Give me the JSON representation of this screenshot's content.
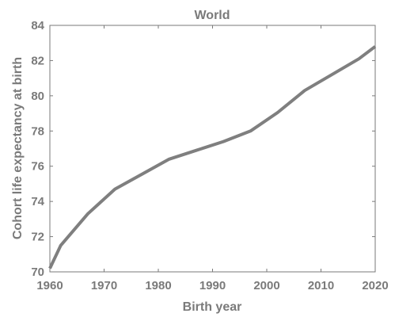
{
  "chart_data": {
    "type": "line",
    "title": "World",
    "xlabel": "Birth year",
    "ylabel": "Cohort life expectancy at birth",
    "xlim": [
      1960,
      2020
    ],
    "ylim": [
      70,
      84
    ],
    "xticks": [
      1960,
      1970,
      1980,
      1990,
      2000,
      2010,
      2020
    ],
    "yticks": [
      70,
      72,
      74,
      76,
      78,
      80,
      82,
      84
    ],
    "grid": false,
    "series": [
      {
        "x": [
          1960,
          1962,
          1967,
          1972,
          1977,
          1982,
          1987,
          1992,
          1997,
          2002,
          2007,
          2012,
          2017,
          2020
        ],
        "y": [
          70.2,
          71.5,
          73.3,
          74.7,
          75.55,
          76.4,
          76.9,
          77.4,
          78.0,
          79.05,
          80.3,
          81.2,
          82.1,
          82.8
        ]
      }
    ],
    "colors": {
      "line": "#7f7f7f",
      "axis": "#7a7a7a",
      "text": "#7a7a7a"
    }
  }
}
